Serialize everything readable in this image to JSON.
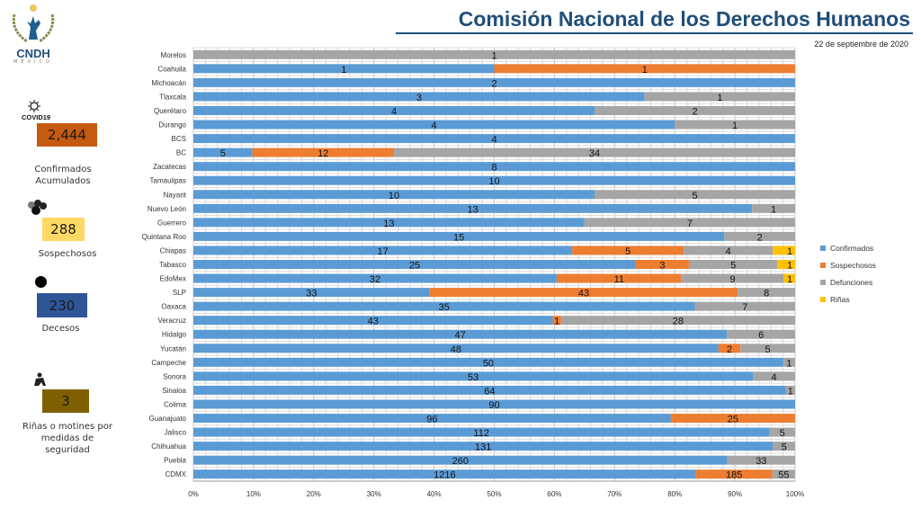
{
  "header": {
    "title": "Comisión Nacional de los Derechos Humanos",
    "date": "22 de septiembre de 2020"
  },
  "logo": {
    "text": "CNDH",
    "subtext": "MÉXICO"
  },
  "summary": [
    {
      "value": "2,444",
      "label": "Confirmados Acumulados",
      "icon": "covid19-virus-icon",
      "icon_text": "COVID19",
      "color": "#c55a11"
    },
    {
      "value": "288",
      "label": "Sospechosos",
      "icon": "people-group-icon",
      "color": "#ffd966"
    },
    {
      "value": "230",
      "label": "Decesos",
      "icon": "black-dot-icon",
      "color": "#2f5597"
    },
    {
      "value": "3",
      "label": "Riñas o motines por medidas de seguridad",
      "icon": "fight-icon",
      "color": "#7f6000"
    }
  ],
  "chart_data": {
    "type": "bar",
    "orientation": "horizontal",
    "stacked": "percent",
    "xlim": [
      0,
      100
    ],
    "x_ticks": [
      "0%",
      "10%",
      "20%",
      "30%",
      "40%",
      "50%",
      "60%",
      "70%",
      "80%",
      "90%",
      "100%"
    ],
    "grid": true,
    "legend_position": "right",
    "categories": [
      "Morelos",
      "Coahuila",
      "Michoacán",
      "Tlaxcala",
      "Querétaro",
      "Durango",
      "BCS",
      "BC",
      "Zacatecas",
      "Tamaulipas",
      "Nayarit",
      "Nuevo León",
      "Guerrero",
      "Quintana Roo",
      "Chiapas",
      "Tabasco",
      "EdoMex",
      "SLP",
      "Oaxaca",
      "Veracruz",
      "Hidalgo",
      "Yucatán",
      "Campeche",
      "Sonora",
      "Sinaloa",
      "Colima",
      "Guanajuato",
      "Jalisco",
      "Chihuahua",
      "Puebla",
      "CDMX"
    ],
    "series": [
      {
        "name": "Confirmados",
        "color": "#5b9bd5",
        "values": [
          null,
          1,
          2,
          3,
          4,
          4,
          4,
          5,
          8,
          10,
          10,
          13,
          13,
          15,
          17,
          25,
          32,
          33,
          35,
          43,
          47,
          48,
          50,
          53,
          64,
          90,
          96,
          112,
          131,
          260,
          1216
        ]
      },
      {
        "name": "Sospechosos",
        "color": "#ed7d31",
        "values": [
          null,
          1,
          null,
          null,
          null,
          null,
          null,
          12,
          null,
          null,
          null,
          null,
          null,
          null,
          5,
          3,
          11,
          43,
          null,
          1,
          null,
          2,
          null,
          null,
          null,
          null,
          25,
          null,
          null,
          null,
          185
        ]
      },
      {
        "name": "Defunciones",
        "color": "#a5a5a5",
        "values": [
          1,
          null,
          null,
          1,
          2,
          1,
          null,
          34,
          null,
          null,
          5,
          1,
          7,
          2,
          4,
          5,
          9,
          8,
          7,
          28,
          6,
          5,
          1,
          4,
          1,
          null,
          null,
          5,
          5,
          33,
          55
        ]
      },
      {
        "name": "Riñas",
        "color": "#ffc000",
        "values": [
          null,
          null,
          null,
          null,
          null,
          null,
          null,
          null,
          null,
          null,
          null,
          null,
          null,
          null,
          1,
          1,
          1,
          null,
          null,
          null,
          null,
          null,
          null,
          null,
          null,
          null,
          null,
          null,
          null,
          null,
          null
        ]
      }
    ]
  }
}
